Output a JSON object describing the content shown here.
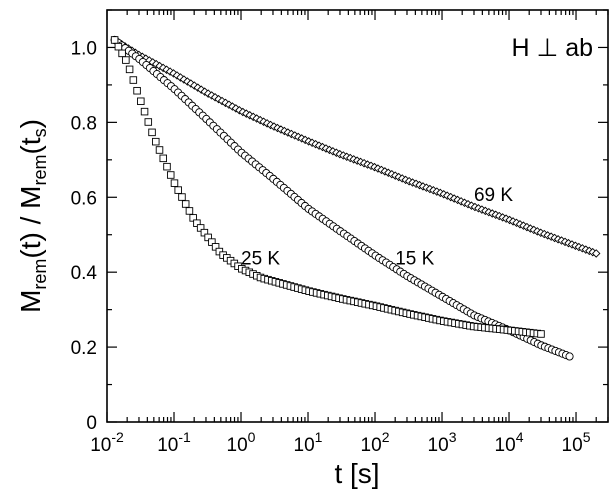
{
  "chart_data": {
    "type": "scatter",
    "title": "",
    "annotation": "H ⊥ ab",
    "xlabel": "t [s]",
    "ylabel_parts": {
      "a": "M",
      "a_sub": "rem",
      "b": "(t) / M",
      "b_sub": "rem",
      "c": "(t",
      "c_sub": "s",
      "d": ")"
    },
    "x_scale": "log",
    "xlim": [
      0.01,
      300000
    ],
    "ylim": [
      0,
      1.1
    ],
    "grid": false,
    "legend": "none",
    "x_ticks": [
      {
        "base": "10",
        "exp": "-2"
      },
      {
        "base": "10",
        "exp": "-1"
      },
      {
        "base": "10",
        "exp": "0"
      },
      {
        "base": "10",
        "exp": "1"
      },
      {
        "base": "10",
        "exp": "2"
      },
      {
        "base": "10",
        "exp": "3"
      },
      {
        "base": "10",
        "exp": "4"
      },
      {
        "base": "10",
        "exp": "5"
      }
    ],
    "y_ticks": [
      0,
      0.2,
      0.4,
      0.6,
      0.8,
      1.0
    ],
    "y_tick_labels": [
      "0",
      "0.2",
      "0.4",
      "0.6",
      "0.8",
      "1.0"
    ],
    "series": [
      {
        "name": "69 K",
        "marker": "diamond",
        "label_at": [
          3000,
          0.59
        ],
        "x": [
          0.013,
          0.03,
          0.1,
          0.3,
          1,
          3,
          10,
          30,
          100,
          300,
          1000,
          3000,
          10000,
          30000,
          100000,
          200000
        ],
        "y": [
          1.02,
          0.98,
          0.93,
          0.88,
          0.83,
          0.79,
          0.75,
          0.715,
          0.68,
          0.645,
          0.61,
          0.575,
          0.54,
          0.505,
          0.47,
          0.45
        ]
      },
      {
        "name": "15 K",
        "marker": "circle",
        "label_at": [
          200,
          0.42
        ],
        "x": [
          0.013,
          0.03,
          0.1,
          0.3,
          1,
          3,
          10,
          30,
          100,
          300,
          1000,
          3000,
          10000,
          30000,
          80000
        ],
        "y": [
          1.02,
          0.97,
          0.89,
          0.81,
          0.72,
          0.65,
          0.57,
          0.51,
          0.445,
          0.39,
          0.335,
          0.285,
          0.245,
          0.205,
          0.175
        ]
      },
      {
        "name": "25 K",
        "marker": "square",
        "label_at": [
          1.0,
          0.42
        ],
        "x": [
          0.013,
          0.02,
          0.03,
          0.05,
          0.1,
          0.2,
          0.5,
          1,
          2,
          5,
          10,
          30,
          100,
          300,
          1000,
          3000,
          10000,
          30000
        ],
        "y": [
          1.02,
          0.96,
          0.87,
          0.76,
          0.64,
          0.54,
          0.45,
          0.41,
          0.385,
          0.365,
          0.35,
          0.33,
          0.31,
          0.29,
          0.27,
          0.255,
          0.245,
          0.235
        ]
      }
    ]
  }
}
